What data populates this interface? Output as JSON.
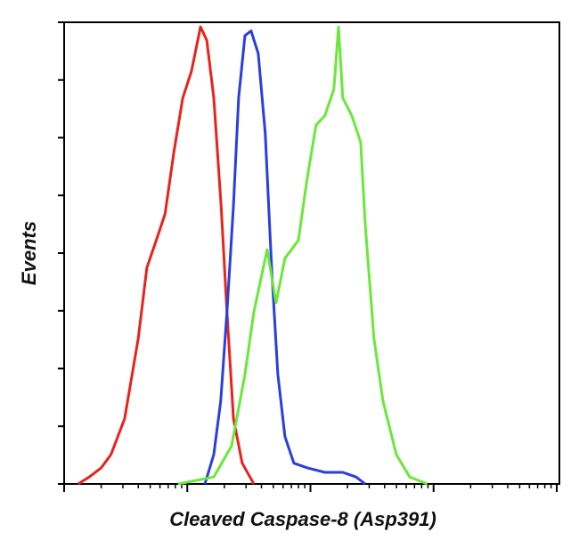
{
  "chart_data": {
    "type": "line",
    "xlabel": "Cleaved Caspase-8 (Asp391)",
    "ylabel": "Events",
    "xscale": "log",
    "xlim": [
      1,
      10000
    ],
    "xticks": [
      1,
      10,
      100,
      1000,
      10000
    ],
    "xminorticks": [
      2,
      3,
      4,
      5,
      6,
      7,
      8,
      9,
      20,
      30,
      40,
      50,
      60,
      70,
      80,
      90,
      200,
      300,
      400,
      500,
      600,
      700,
      800,
      900,
      2000,
      3000,
      4000,
      5000,
      6000,
      7000,
      8000,
      9000
    ],
    "ylim": [
      0,
      800
    ],
    "yticks": [
      0,
      100,
      200,
      300,
      400,
      500,
      600,
      700,
      800
    ],
    "series": [
      {
        "color": "#e8231c",
        "x": [
          1.3,
          1.6,
          2.0,
          2.4,
          3.1,
          4.0,
          4.7,
          5.6,
          6.6,
          7.8,
          9.2,
          10.8,
          12.8,
          14.4,
          16.4,
          18.8,
          21,
          23.7,
          27.9,
          34.7
        ],
        "values": [
          0,
          12,
          28,
          51,
          113,
          252,
          375,
          422,
          468,
          576,
          669,
          715,
          792,
          769,
          669,
          483,
          298,
          113,
          36,
          0
        ]
      },
      {
        "color": "#2a3ee0",
        "x": [
          13.9,
          16.4,
          18.7,
          21,
          23.7,
          26.1,
          29.4,
          33,
          37.7,
          43,
          48.4,
          54.4,
          62.1,
          73.4,
          94.2,
          131,
          183,
          235,
          278
        ],
        "values": [
          0,
          51,
          144,
          298,
          483,
          669,
          777,
          785,
          746,
          607,
          375,
          190,
          82,
          36,
          28,
          20,
          20,
          12,
          0
        ]
      },
      {
        "color": "#6ae83a",
        "x": [
          8.4,
          16.4,
          22.9,
          29.4,
          34.7,
          44.5,
          52.6,
          62.1,
          79.7,
          94.2,
          111,
          131,
          155,
          169,
          183,
          217,
          256,
          278,
          328,
          388,
          498,
          639,
          891
        ],
        "values": [
          0,
          12,
          66,
          190,
          298,
          406,
          314,
          391,
          422,
          530,
          622,
          638,
          684,
          792,
          669,
          638,
          592,
          452,
          252,
          144,
          51,
          12,
          0
        ]
      }
    ]
  }
}
